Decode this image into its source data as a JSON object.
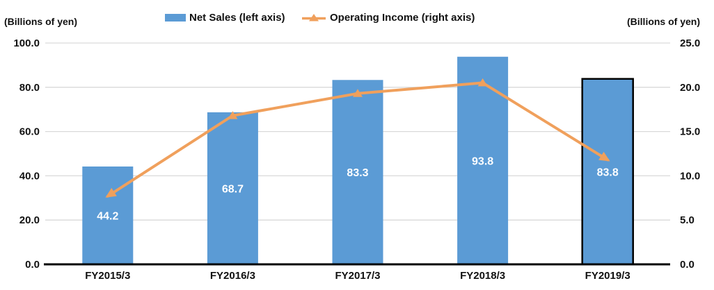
{
  "units": {
    "left": "(Billions of yen)",
    "right": "(Billions of yen)"
  },
  "legend": [
    {
      "label": "Net Sales (left axis)",
      "series_type": "bar"
    },
    {
      "label": "Operating Income (right axis)",
      "series_type": "line"
    }
  ],
  "colors": {
    "bar": "#5B9BD5",
    "bar_border": "#000000",
    "bar_label": "#FFFFFF",
    "line": "#F0A05C",
    "gridline": "#D9D9D9",
    "axis": "#000000",
    "text": "#111111"
  },
  "chart_data": {
    "type": "combo",
    "title": "",
    "categories": [
      "FY2015/3",
      "FY2016/3",
      "FY2017/3",
      "FY2018/3",
      "FY2019/3"
    ],
    "series": [
      {
        "name": "Net Sales (left axis)",
        "type": "bar",
        "axis": "left",
        "values": [
          44.2,
          68.7,
          83.3,
          93.8,
          83.8
        ],
        "data_labels": [
          "44.2",
          "68.7",
          "83.3",
          "93.8",
          "83.8"
        ]
      },
      {
        "name": "Operating Income (right axis)",
        "type": "line",
        "axis": "right",
        "values": [
          7.7,
          16.8,
          19.3,
          20.5,
          11.8
        ]
      }
    ],
    "left_axis": {
      "title": "(Billions of yen)",
      "min": 0,
      "max": 100,
      "tick_labels": [
        "0.0",
        "20.0",
        "40.0",
        "60.0",
        "80.0",
        "100.0"
      ]
    },
    "right_axis": {
      "title": "(Billions of yen)",
      "min": 0,
      "max": 25,
      "tick_labels": [
        "0.0",
        "5.0",
        "10.0",
        "15.0",
        "20.0",
        "25.0"
      ]
    },
    "highlighted_category": "FY2019/3",
    "grid": true,
    "legend_position": "top"
  }
}
